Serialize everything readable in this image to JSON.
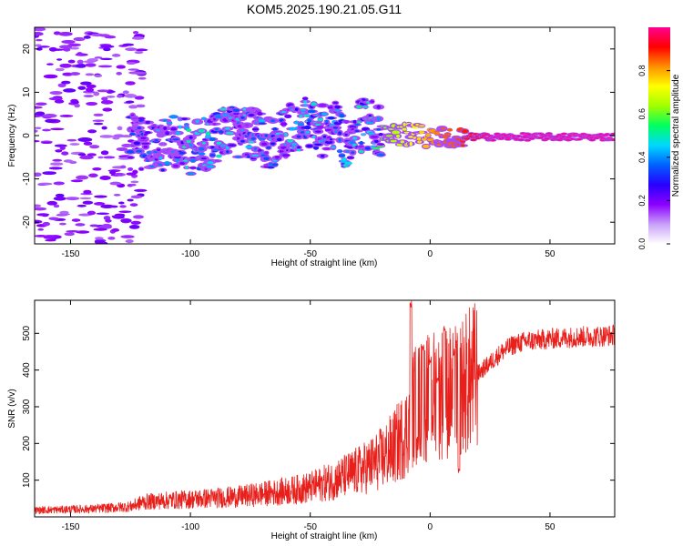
{
  "title": "KOM5.2025.190.21.05.G11",
  "charts": [
    {
      "type": "heatmap",
      "xlabel": "Height of straight line (km)",
      "ylabel": "Frequency (Hz)",
      "xlim": [
        -165,
        77
      ],
      "ylim": [
        -25,
        25
      ],
      "xticks": [
        -150,
        -100,
        -50,
        0,
        50
      ],
      "yticks": [
        -20,
        -10,
        0,
        10,
        20
      ],
      "colorbar": {
        "label": "Normalized spectral amplitude",
        "range": [
          0,
          1
        ],
        "ticks": [
          "0.0",
          "0.2",
          "0.4",
          "0.6",
          "0.8"
        ],
        "stops": [
          "#ffffff",
          "#c8a0f8",
          "#8c00ff",
          "#2800ff",
          "#0060ff",
          "#00d8ff",
          "#00ff60",
          "#a0ff00",
          "#ffff00",
          "#ff9000",
          "#ff0000",
          "#ff0090"
        ]
      },
      "ridge": [
        [
          -163,
          15,
          0.2
        ],
        [
          -160,
          2,
          0.15
        ],
        [
          -155,
          -5,
          0.15
        ],
        [
          -150,
          8,
          0.15
        ],
        [
          -145,
          -12,
          0.15
        ],
        [
          -140,
          3,
          0.15
        ],
        [
          -135,
          -18,
          0.15
        ],
        [
          -130,
          -20,
          0.3
        ],
        [
          -125,
          -1,
          0.35
        ],
        [
          -120,
          -2,
          0.4
        ],
        [
          -115,
          -3,
          0.45
        ],
        [
          -110,
          -2,
          0.45
        ],
        [
          -105,
          -1,
          0.5
        ],
        [
          -100,
          -3,
          0.55
        ],
        [
          -95,
          -2,
          0.5
        ],
        [
          -90,
          -1,
          0.5
        ],
        [
          -85,
          1,
          0.5
        ],
        [
          -80,
          0,
          0.5
        ],
        [
          -75,
          1,
          0.5
        ],
        [
          -70,
          -1,
          0.5
        ],
        [
          -65,
          -2,
          0.45
        ],
        [
          -60,
          1,
          0.5
        ],
        [
          -55,
          2,
          0.5
        ],
        [
          -50,
          3,
          0.5
        ],
        [
          -45,
          1,
          0.5
        ],
        [
          -40,
          2,
          0.5
        ],
        [
          -35,
          -2,
          0.5
        ],
        [
          -30,
          2,
          0.55
        ],
        [
          -25,
          3,
          0.55
        ],
        [
          -20,
          1,
          0.6
        ],
        [
          -15,
          0.5,
          0.65
        ],
        [
          -10,
          0.3,
          0.7
        ],
        [
          -5,
          0,
          0.75
        ],
        [
          0,
          0,
          0.8
        ],
        [
          5,
          0,
          0.85
        ],
        [
          10,
          0,
          0.85
        ],
        [
          15,
          -0.3,
          0.9
        ],
        [
          20,
          -0.3,
          0.95
        ],
        [
          25,
          -0.3,
          1.0
        ],
        [
          30,
          -0.3,
          1.0
        ],
        [
          40,
          -0.3,
          1.0
        ],
        [
          50,
          -0.3,
          1.0
        ],
        [
          60,
          -0.3,
          1.0
        ],
        [
          70,
          -0.3,
          1.0
        ],
        [
          77,
          -0.3,
          1.0
        ]
      ]
    },
    {
      "type": "line",
      "xlabel": "Height of straight line (km)",
      "ylabel": "SNR (v/v)",
      "xlim": [
        -165,
        77
      ],
      "ylim": [
        0,
        590
      ],
      "xticks": [
        -150,
        -100,
        -50,
        0,
        50
      ],
      "yticks": [
        100,
        200,
        300,
        400,
        500
      ],
      "color": "#e8201c",
      "trend": [
        [
          -165,
          18
        ],
        [
          -140,
          22
        ],
        [
          -125,
          28
        ],
        [
          -120,
          40
        ],
        [
          -110,
          45
        ],
        [
          -100,
          48
        ],
        [
          -80,
          55
        ],
        [
          -60,
          70
        ],
        [
          -50,
          80
        ],
        [
          -40,
          100
        ],
        [
          -30,
          125
        ],
        [
          -25,
          140
        ],
        [
          -20,
          160
        ],
        [
          -15,
          190
        ],
        [
          -10,
          230
        ],
        [
          -7,
          300
        ],
        [
          -5,
          310
        ],
        [
          0,
          330
        ],
        [
          5,
          340
        ],
        [
          10,
          340
        ],
        [
          15,
          365
        ],
        [
          20,
          390
        ],
        [
          25,
          420
        ],
        [
          30,
          450
        ],
        [
          35,
          470
        ],
        [
          40,
          478
        ],
        [
          50,
          485
        ],
        [
          60,
          490
        ],
        [
          70,
          492
        ],
        [
          77,
          495
        ]
      ],
      "peaks": [
        [
          -8,
          590
        ],
        [
          -3,
          470
        ],
        [
          0,
          430
        ],
        [
          3,
          380
        ],
        [
          6,
          520
        ],
        [
          10,
          460
        ],
        [
          12,
          140
        ]
      ]
    }
  ]
}
